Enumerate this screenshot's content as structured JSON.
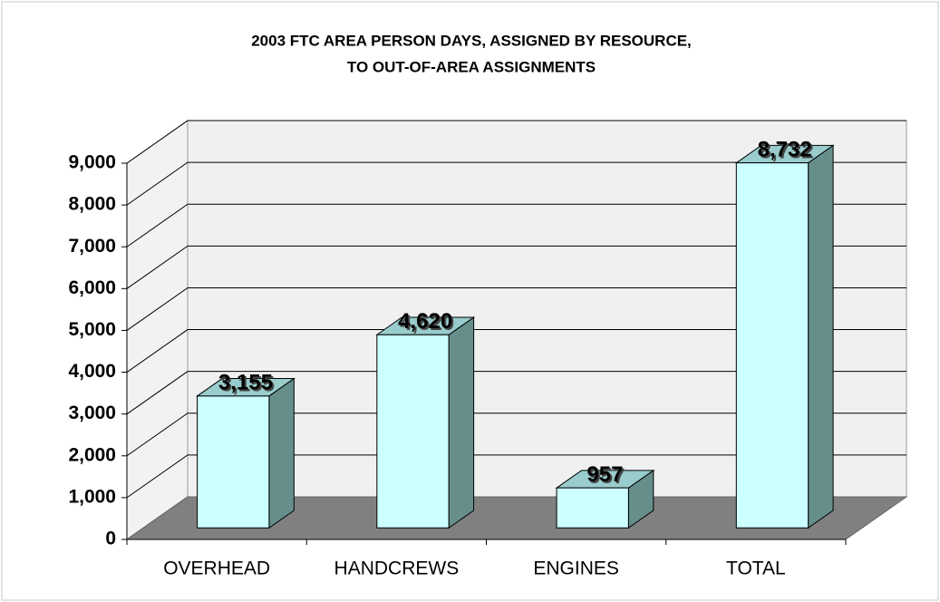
{
  "chart_data": {
    "type": "bar3d",
    "title": [
      "2003 FTC AREA PERSON DAYS, ASSIGNED BY RESOURCE,",
      "TO OUT-OF-AREA ASSIGNMENTS"
    ],
    "categories": [
      "OVERHEAD",
      "HANDCREWS",
      "ENGINES",
      "TOTAL"
    ],
    "values": [
      3155,
      4620,
      957,
      8732
    ],
    "value_labels": [
      "3,155",
      "4,620",
      "957",
      "8,732"
    ],
    "color": "#ccffff",
    "ylim": [
      0,
      9000
    ],
    "yticks": [
      0,
      {
        "value": 1000,
        "label": "1,000"
      },
      {
        "value": 2000,
        "label": "2,000"
      },
      {
        "value": 3000,
        "label": "3,000"
      },
      {
        "value": 4000,
        "label": "4,000"
      },
      {
        "value": 5000,
        "label": "5,000"
      },
      {
        "value": 6000,
        "label": "6,000"
      },
      {
        "value": 7000,
        "label": "7,000"
      },
      {
        "value": 8000,
        "label": "8,000"
      },
      {
        "value": 9000,
        "label": "9,000"
      }
    ],
    "grid": true
  }
}
